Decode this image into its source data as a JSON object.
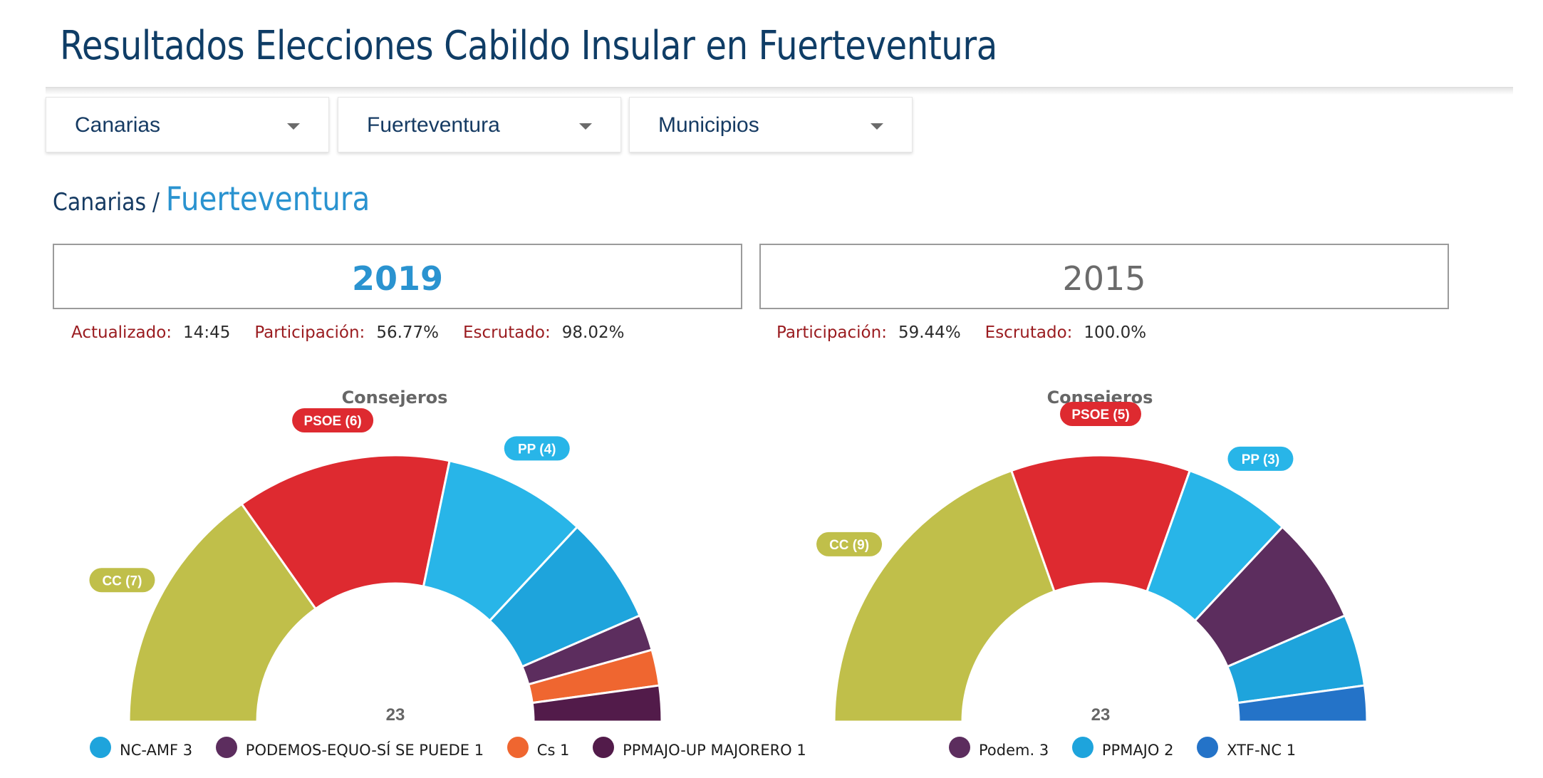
{
  "header": {
    "title": "Resultados Elecciones Cabildo Insular en Fuerteventura"
  },
  "selectors": [
    {
      "label": "Canarias"
    },
    {
      "label": "Fuerteventura"
    },
    {
      "label": "Municipios"
    }
  ],
  "breadcrumb": {
    "root": "Canarias",
    "separator": "/",
    "current": "Fuerteventura"
  },
  "panels": [
    {
      "year": "2019",
      "stats": [
        {
          "label": "Actualizado:",
          "value": "14:45"
        },
        {
          "label": "Participación:",
          "value": "56.77%"
        },
        {
          "label": "Escrutado:",
          "value": "98.02%"
        }
      ],
      "chart_title": "Consejeros",
      "total_label": "23"
    },
    {
      "year": "2015",
      "stats": [
        {
          "label": "Participación:",
          "value": "59.44%"
        },
        {
          "label": "Escrutado:",
          "value": "100.0%"
        }
      ],
      "chart_title": "Consejeros",
      "total_label": "23"
    }
  ],
  "chart_data": [
    {
      "type": "pie",
      "title": "Consejeros",
      "total": 23,
      "series": [
        {
          "name": "CC",
          "value": 7,
          "color": "#c0bf4a",
          "label": "CC (7)"
        },
        {
          "name": "PSOE",
          "value": 6,
          "color": "#de2a30",
          "label": "PSOE (6)"
        },
        {
          "name": "PP",
          "value": 4,
          "color": "#28b5e8",
          "label": "PP (4)"
        },
        {
          "name": "NC-AMF",
          "value": 3,
          "color": "#1ea4dc",
          "legend": "NC-AMF 3"
        },
        {
          "name": "PODEMOS-EQUO-SÍ SE PUEDE",
          "value": 1,
          "color": "#5c2d5e",
          "legend": "PODEMOS-EQUO-SÍ SE PUEDE 1"
        },
        {
          "name": "Cs",
          "value": 1,
          "color": "#ef6630",
          "legend": "Cs 1"
        },
        {
          "name": "PPMAJO-UP MAJORERO",
          "value": 1,
          "color": "#521b4a",
          "legend": "PPMAJO-UP MAJORERO 1"
        }
      ]
    },
    {
      "type": "pie",
      "title": "Consejeros",
      "total": 23,
      "series": [
        {
          "name": "CC",
          "value": 9,
          "color": "#c0bf4a",
          "label": "CC (9)"
        },
        {
          "name": "PSOE",
          "value": 5,
          "color": "#de2a30",
          "label": "PSOE (5)"
        },
        {
          "name": "PP",
          "value": 3,
          "color": "#28b5e8",
          "label": "PP (3)"
        },
        {
          "name": "Podem.",
          "value": 3,
          "color": "#5c2d5e",
          "legend": "Podem. 3"
        },
        {
          "name": "PPMAJO",
          "value": 2,
          "color": "#1ea4dc",
          "legend": "PPMAJO 2"
        },
        {
          "name": "XTF-NC",
          "value": 1,
          "color": "#2473c8",
          "legend": "XTF-NC 1"
        }
      ]
    }
  ]
}
